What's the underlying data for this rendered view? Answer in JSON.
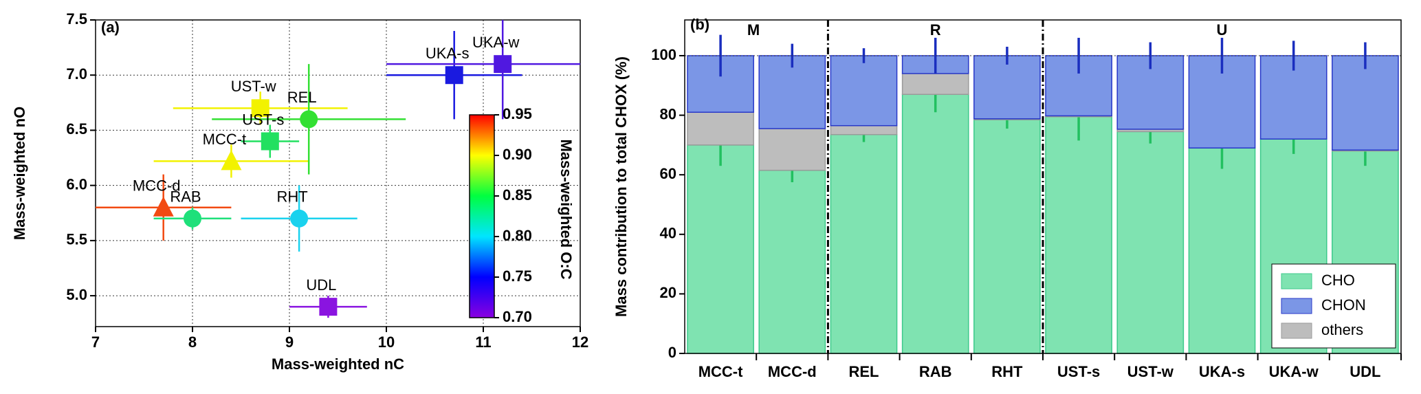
{
  "chart_data": [
    {
      "type": "scatter",
      "label": "(a)",
      "xlabel": "Mass-weighted nC",
      "ylabel": "Mass-weighted nO",
      "xlim": [
        7,
        12
      ],
      "ylim": [
        4.72,
        7.5
      ],
      "xticks": [
        7,
        8,
        9,
        10,
        11,
        12
      ],
      "yticks": [
        {
          "value": 5,
          "label": "5.0"
        },
        {
          "value": 5.5,
          "label": "5.5"
        },
        {
          "value": 6,
          "label": "6.0"
        },
        {
          "value": 6.5,
          "label": "6.5"
        },
        {
          "value": 7,
          "label": "7.0"
        },
        {
          "value": 7.5,
          "label": "7.5"
        }
      ],
      "grid": true,
      "points": [
        {
          "name": "MCC-t",
          "x": 8.4,
          "y": 6.22,
          "xerr": 0.8,
          "yerr": 0.15,
          "marker": "triangle",
          "color": "#f2f200"
        },
        {
          "name": "MCC-d",
          "x": 7.7,
          "y": 5.8,
          "xerr": 0.7,
          "yerr": 0.3,
          "marker": "triangle",
          "color": "#f24a12"
        },
        {
          "name": "RAB",
          "x": 8.0,
          "y": 5.7,
          "xerr": 0.4,
          "yerr": 0.1,
          "marker": "circle",
          "color": "#1ee07a"
        },
        {
          "name": "RHT",
          "x": 9.1,
          "y": 5.7,
          "xerr": 0.6,
          "yerr": 0.3,
          "marker": "circle",
          "color": "#1ad2ee"
        },
        {
          "name": "UST-w",
          "x": 8.7,
          "y": 6.7,
          "xerr": 0.9,
          "yerr": 0.15,
          "marker": "square",
          "color": "#f2f200"
        },
        {
          "name": "UST-s",
          "x": 8.8,
          "y": 6.4,
          "xerr": 0.3,
          "yerr": 0.15,
          "marker": "square",
          "color": "#22e060"
        },
        {
          "name": "REL",
          "x": 9.2,
          "y": 6.6,
          "xerr": 1.0,
          "yerr": 0.5,
          "marker": "circle",
          "color": "#33e033"
        },
        {
          "name": "UKA-s",
          "x": 10.7,
          "y": 7.0,
          "xerr": 0.7,
          "yerr": 0.4,
          "marker": "square",
          "color": "#1a1ae0"
        },
        {
          "name": "UKA-w",
          "x": 11.2,
          "y": 7.1,
          "xerr": 1.2,
          "yerr": 0.5,
          "marker": "square",
          "color": "#5018e0"
        },
        {
          "name": "UDL",
          "x": 9.4,
          "y": 4.9,
          "xerr": 0.4,
          "yerr": 0.1,
          "marker": "square",
          "color": "#8a14e0"
        }
      ],
      "colorbar": {
        "label": "Mass-weighted O:C",
        "lim": [
          0.7,
          0.95
        ],
        "ticks": [
          {
            "value": 0.7,
            "label": "0.70"
          },
          {
            "value": 0.75,
            "label": "0.75"
          },
          {
            "value": 0.8,
            "label": "0.80"
          },
          {
            "value": 0.85,
            "label": "0.85"
          },
          {
            "value": 0.9,
            "label": "0.90"
          },
          {
            "value": 0.95,
            "label": "0.95"
          }
        ],
        "colors": [
          "#8a00e0",
          "#0000ff",
          "#00e5ff",
          "#00ff40",
          "#ffff00",
          "#ff0000"
        ]
      }
    },
    {
      "type": "stacked-bar",
      "label": "(b)",
      "ylabel": "Mass contribution to total CHOX (%)",
      "categories": [
        "MCC-t",
        "MCC-d",
        "REL",
        "RAB",
        "RHT",
        "UST-s",
        "UST-w",
        "UKA-s",
        "UKA-w",
        "UDL"
      ],
      "ylim": [
        0,
        112
      ],
      "yticks": [
        0,
        20,
        40,
        60,
        80,
        100
      ],
      "groups": [
        {
          "label": "M",
          "first": "MCC-t",
          "last": "MCC-d"
        },
        {
          "label": "R",
          "first": "REL",
          "last": "RHT"
        },
        {
          "label": "U",
          "first": "UST-s",
          "last": "UDL"
        }
      ],
      "stack_order": [
        "CHO",
        "others",
        "CHON"
      ],
      "legend": "lower right",
      "series": [
        {
          "name": "CHO",
          "color": "#7fe3b1",
          "edge": "#3cc98a",
          "err_color": "#22c060",
          "values": [
            70,
            61.5,
            73.5,
            87,
            78.5,
            79.5,
            74.5,
            69,
            72,
            68
          ],
          "errors": [
            7,
            4,
            2.5,
            6,
            3,
            8,
            4,
            7,
            5,
            5
          ]
        },
        {
          "name": "CHON",
          "color": "#7b96e6",
          "edge": "#2838c8",
          "err_color": "#1a2ebf",
          "values": [
            19,
            24.5,
            23.5,
            6,
            21.2,
            20.2,
            24.7,
            31,
            28,
            31.7
          ],
          "errors": [
            7,
            4,
            2.5,
            6,
            3,
            6,
            4.5,
            6,
            5,
            4.5
          ]
        },
        {
          "name": "others",
          "color": "#bdbdbd",
          "edge": "#9a9a9a",
          "values": [
            11,
            14,
            3,
            7,
            0.3,
            0.3,
            0.8,
            0,
            0,
            0.3
          ]
        }
      ]
    }
  ]
}
